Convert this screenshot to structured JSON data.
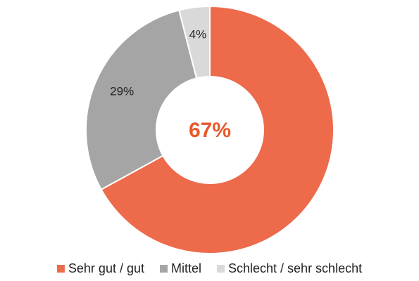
{
  "chart_data": {
    "type": "donut",
    "categories": [
      "Sehr gut / gut",
      "Mittel",
      "Schlecht / sehr schlecht"
    ],
    "values": [
      67,
      29,
      4
    ],
    "value_labels": [
      "67%",
      "29%",
      "4%"
    ],
    "colors": [
      "#ED6A4B",
      "#A5A5A5",
      "#D9D9D9"
    ],
    "legend": "bottom"
  }
}
